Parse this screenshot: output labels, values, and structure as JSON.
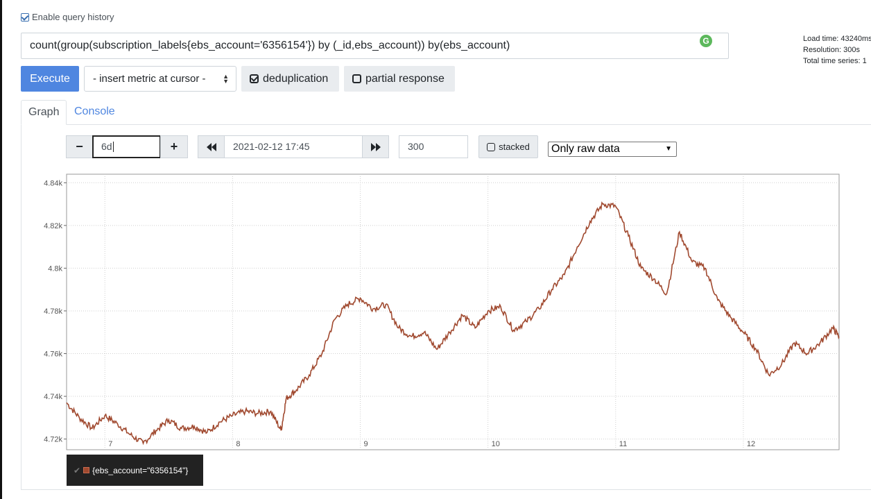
{
  "query_history": {
    "label": "Enable query history"
  },
  "query": {
    "expression": "count(group(subscription_labels{ebs_account='6356154'}) by (_id,ebs_account)) by(ebs_account)"
  },
  "stats": {
    "load_time": "Load time: 43240ms",
    "resolution": "Resolution: 300s",
    "total_series": "Total time series: 1"
  },
  "toolbar": {
    "execute_label": "Execute",
    "insert_metric_label": "- insert metric at cursor -",
    "deduplication_label": "deduplication",
    "partial_response_label": "partial response"
  },
  "tabs": {
    "graph": "Graph",
    "console": "Console"
  },
  "graph_controls": {
    "range_minus": "−",
    "range_value": "6d",
    "range_plus": "+",
    "back_icon": "fast-backward-icon",
    "end_time": "2021-02-12 17:45",
    "forward_icon": "fast-forward-icon",
    "resolution": "300",
    "stacked_label": "stacked",
    "downsample_selected": "Only raw data"
  },
  "colors": {
    "series": "#a0492f",
    "execute_bg": "#4f86e0",
    "tab_link": "#4f86e0"
  },
  "legend": {
    "series_label": "{ebs_account=\"6356154\"}"
  },
  "chart_data": {
    "type": "line",
    "title": "",
    "xlabel": "",
    "ylabel": "",
    "x_ticks": [
      "7",
      "8",
      "9",
      "10",
      "11",
      "12"
    ],
    "y_ticks": [
      "4.72k",
      "4.74k",
      "4.76k",
      "4.78k",
      "4.8k",
      "4.82k",
      "4.84k"
    ],
    "ylim": [
      4715,
      4844
    ],
    "xlim": [
      6.7,
      12.75
    ],
    "grid": true,
    "series": [
      {
        "name": "{ebs_account=\"6356154\"}",
        "x": [
          6.7,
          6.8,
          6.9,
          7.0,
          7.1,
          7.2,
          7.3,
          7.4,
          7.5,
          7.6,
          7.7,
          7.8,
          7.9,
          8.0,
          8.1,
          8.2,
          8.3,
          8.38,
          8.42,
          8.5,
          8.6,
          8.7,
          8.8,
          8.9,
          9.0,
          9.1,
          9.2,
          9.3,
          9.4,
          9.5,
          9.6,
          9.7,
          9.8,
          9.9,
          10.0,
          10.1,
          10.2,
          10.3,
          10.4,
          10.5,
          10.6,
          10.7,
          10.8,
          10.9,
          11.0,
          11.1,
          11.2,
          11.3,
          11.4,
          11.5,
          11.6,
          11.7,
          11.8,
          11.9,
          12.0,
          12.1,
          12.2,
          12.3,
          12.4,
          12.5,
          12.6,
          12.7,
          12.75
        ],
        "values": [
          4737,
          4730,
          4725,
          4731,
          4727,
          4722,
          4718,
          4724,
          4729,
          4725,
          4726,
          4723,
          4728,
          4731,
          4733,
          4732,
          4733,
          4724,
          4739,
          4743,
          4750,
          4760,
          4776,
          4783,
          4786,
          4781,
          4783,
          4772,
          4768,
          4770,
          4762,
          4770,
          4778,
          4772,
          4780,
          4782,
          4771,
          4775,
          4781,
          4790,
          4797,
          4810,
          4822,
          4830,
          4829,
          4815,
          4800,
          4795,
          4788,
          4817,
          4803,
          4800,
          4785,
          4777,
          4770,
          4762,
          4750,
          4755,
          4765,
          4760,
          4765,
          4772,
          4768
        ]
      }
    ]
  }
}
